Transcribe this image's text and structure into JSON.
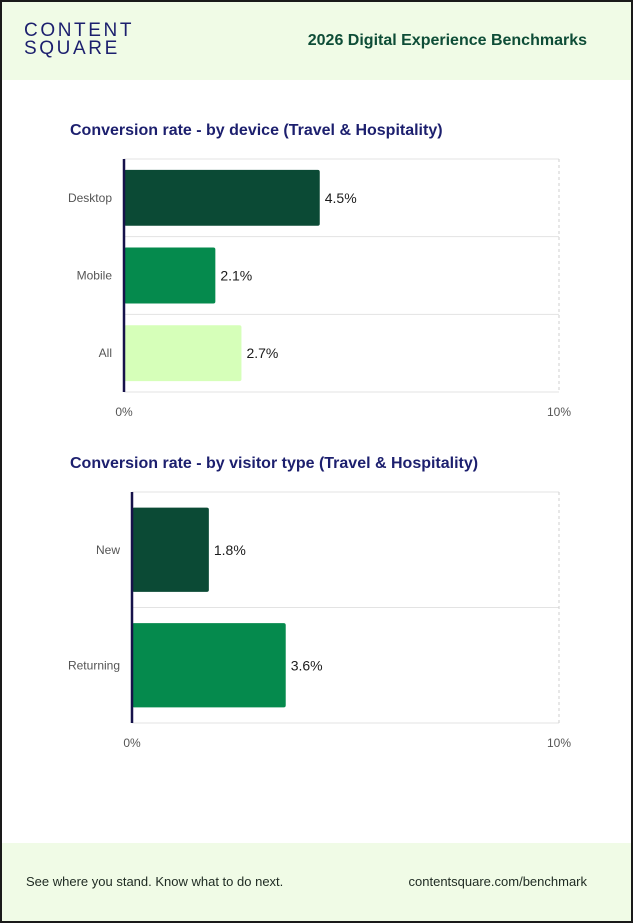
{
  "header": {
    "logo_line1": "CONTENT",
    "logo_line2": "SQUARE",
    "title": "2026 Digital Experience Benchmarks"
  },
  "chart_data": [
    {
      "type": "bar",
      "orientation": "horizontal",
      "title": "Conversion rate - by device (Travel & Hospitality)",
      "categories": [
        "Desktop",
        "Mobile",
        "All"
      ],
      "values": [
        4.5,
        2.1,
        2.7
      ],
      "data_labels": [
        "4.5%",
        "2.1%",
        "2.7%"
      ],
      "colors": [
        "#0b4a35",
        "#058a4d",
        "#d6ffb9"
      ],
      "xlim": [
        0,
        10
      ],
      "xticks": [
        "0%",
        "10%"
      ],
      "xlabel": "",
      "ylabel": ""
    },
    {
      "type": "bar",
      "orientation": "horizontal",
      "title": "Conversion rate - by visitor type (Travel & Hospitality)",
      "categories": [
        "New",
        "Returning"
      ],
      "values": [
        1.8,
        3.6
      ],
      "data_labels": [
        "1.8%",
        "3.6%"
      ],
      "colors": [
        "#0b4a35",
        "#058a4d"
      ],
      "xlim": [
        0,
        10
      ],
      "xticks": [
        "0%",
        "10%"
      ],
      "xlabel": "",
      "ylabel": ""
    }
  ],
  "footer": {
    "tagline": "See where you stand. Know what to do next.",
    "link": "contentsquare.com/benchmark"
  }
}
